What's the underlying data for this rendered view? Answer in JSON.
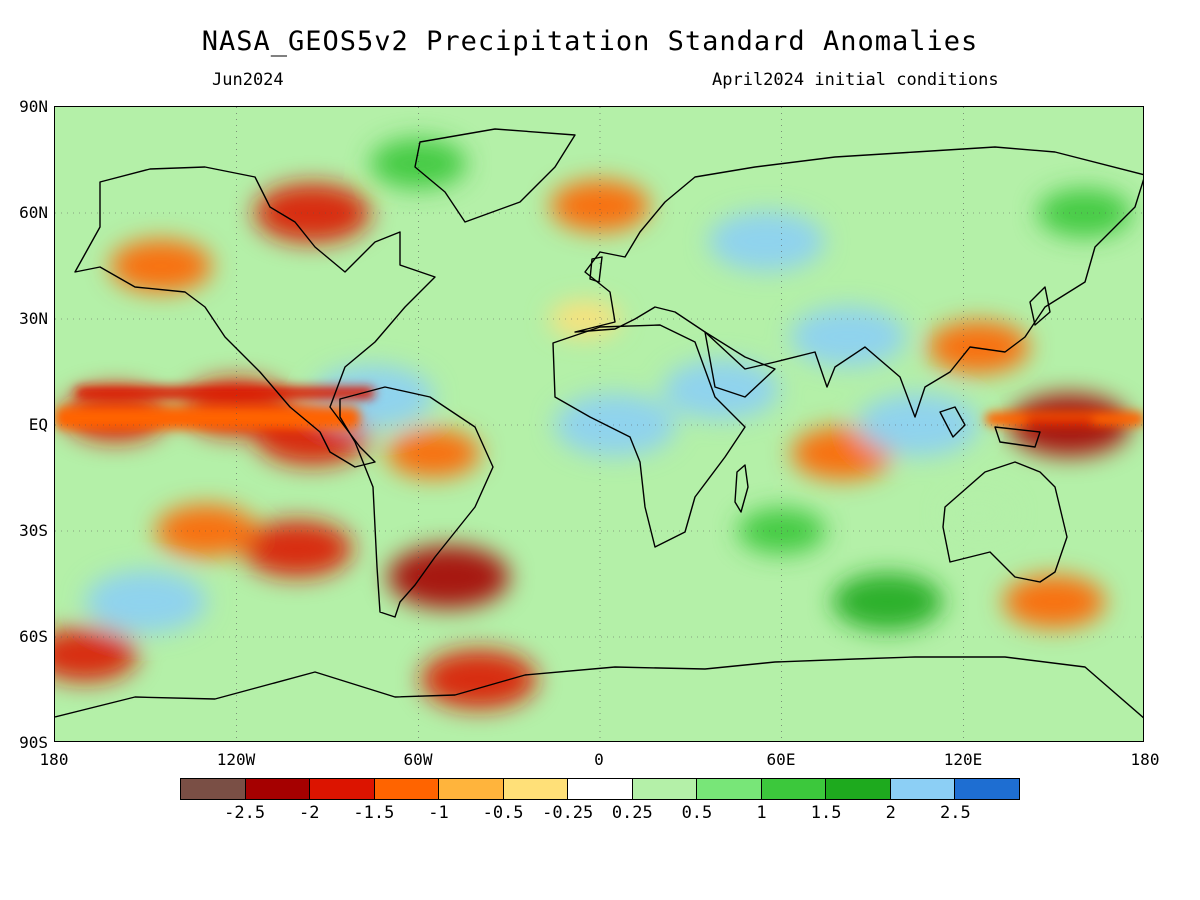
{
  "title": "NASA_GEOS5v2 Precipitation Standard Anomalies",
  "subtitle_left": "Jun2024",
  "subtitle_right": "April2024 initial conditions",
  "lat_labels": [
    "90N",
    "60N",
    "30N",
    "EQ",
    "30S",
    "60S",
    "90S"
  ],
  "lon_labels": [
    "180",
    "120W",
    "60W",
    "0",
    "60E",
    "120E",
    "180"
  ],
  "colorbar": {
    "colors": [
      "#7a4f45",
      "#a50000",
      "#dc1400",
      "#ff6400",
      "#ffb43c",
      "#ffe078",
      "#ffffff",
      "#b4f0a8",
      "#78e678",
      "#3cc83c",
      "#1eaa1e",
      "#8ccff5",
      "#1e6ed2"
    ],
    "labels": [
      "-2.5",
      "-2",
      "-1.5",
      "-1",
      "-0.5",
      "-0.25",
      "0.25",
      "0.5",
      "1",
      "1.5",
      "2",
      "2.5"
    ]
  },
  "chart_data": {
    "type": "heatmap",
    "variable": "precipitation standard anomaly",
    "x_range_lon": [
      -180,
      180
    ],
    "y_range_lat": [
      -90,
      90
    ],
    "levels": [
      -2.5,
      -2,
      -1.5,
      -1,
      -0.5,
      -0.25,
      0.25,
      0.5,
      1,
      1.5,
      2,
      2.5
    ],
    "features": [
      {
        "lon": -120,
        "lat": 5,
        "value": -1.8
      },
      {
        "lon": -160,
        "lat": 3,
        "value": -1.6
      },
      {
        "lon": -95,
        "lat": -3,
        "value": -2.0
      },
      {
        "lon": -55,
        "lat": -8,
        "value": -1.2
      },
      {
        "lon": -100,
        "lat": -35,
        "value": -1.8
      },
      {
        "lon": -130,
        "lat": -30,
        "value": -1.5
      },
      {
        "lon": -170,
        "lat": -65,
        "value": -1.6
      },
      {
        "lon": -40,
        "lat": -72,
        "value": -2.0
      },
      {
        "lon": -95,
        "lat": 60,
        "value": -2.0
      },
      {
        "lon": -145,
        "lat": 45,
        "value": -1.5
      },
      {
        "lon": 0,
        "lat": 62,
        "value": -1.4
      },
      {
        "lon": 155,
        "lat": 0,
        "value": -2.2
      },
      {
        "lon": 125,
        "lat": 22,
        "value": -1.5
      },
      {
        "lon": 80,
        "lat": -8,
        "value": -1.5
      },
      {
        "lon": 150,
        "lat": -50,
        "value": -1.5
      },
      {
        "lon": -50,
        "lat": -43,
        "value": -2.2
      },
      {
        "lon": 40,
        "lat": 10,
        "value": 2.0
      },
      {
        "lon": 82,
        "lat": 25,
        "value": 2.0
      },
      {
        "lon": 105,
        "lat": 0,
        "value": 2.2
      },
      {
        "lon": 5,
        "lat": 0,
        "value": 2.2
      },
      {
        "lon": 55,
        "lat": 52,
        "value": 2.0
      },
      {
        "lon": -150,
        "lat": -50,
        "value": 2.2
      },
      {
        "lon": -75,
        "lat": 8,
        "value": 2.2
      },
      {
        "lon": 95,
        "lat": -50,
        "value": 1.8
      },
      {
        "lon": -60,
        "lat": 74,
        "value": 1.3
      },
      {
        "lon": 160,
        "lat": 60,
        "value": 1.2
      },
      {
        "lon": -5,
        "lat": 30,
        "value": -0.4
      },
      {
        "lon": 125,
        "lat": -25,
        "value": 0.3
      },
      {
        "lon": 60,
        "lat": -30,
        "value": 1.0
      }
    ]
  }
}
